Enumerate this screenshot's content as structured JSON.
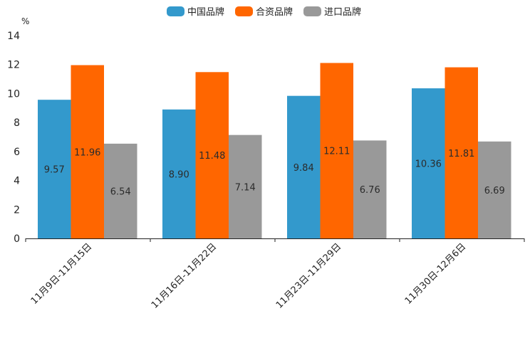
{
  "chart_data": {
    "type": "bar",
    "unit": "%",
    "categories": [
      "11月9日-11月15日",
      "11月16日-11月22日",
      "11月23日-11月29日",
      "11月30日-12月6日"
    ],
    "series": [
      {
        "name": "中国品牌",
        "color": "#3399cc",
        "values": [
          9.57,
          8.9,
          9.84,
          10.36
        ],
        "labels": [
          "9.57",
          "8.90",
          "9.84",
          "10.36"
        ]
      },
      {
        "name": "合资品牌",
        "color": "#ff6600",
        "values": [
          11.96,
          11.48,
          12.11,
          11.81
        ],
        "labels": [
          "11.96",
          "11.48",
          "12.11",
          "11.81"
        ]
      },
      {
        "name": "进口品牌",
        "color": "#999999",
        "values": [
          6.54,
          7.14,
          6.76,
          6.69
        ],
        "labels": [
          "6.54",
          "7.14",
          "6.76",
          "6.69"
        ]
      }
    ],
    "yticks": [
      "0",
      "2",
      "4",
      "6",
      "8",
      "10",
      "12",
      "14"
    ],
    "ylim": [
      0,
      14
    ],
    "legend_position": "top-center",
    "grid": false
  }
}
